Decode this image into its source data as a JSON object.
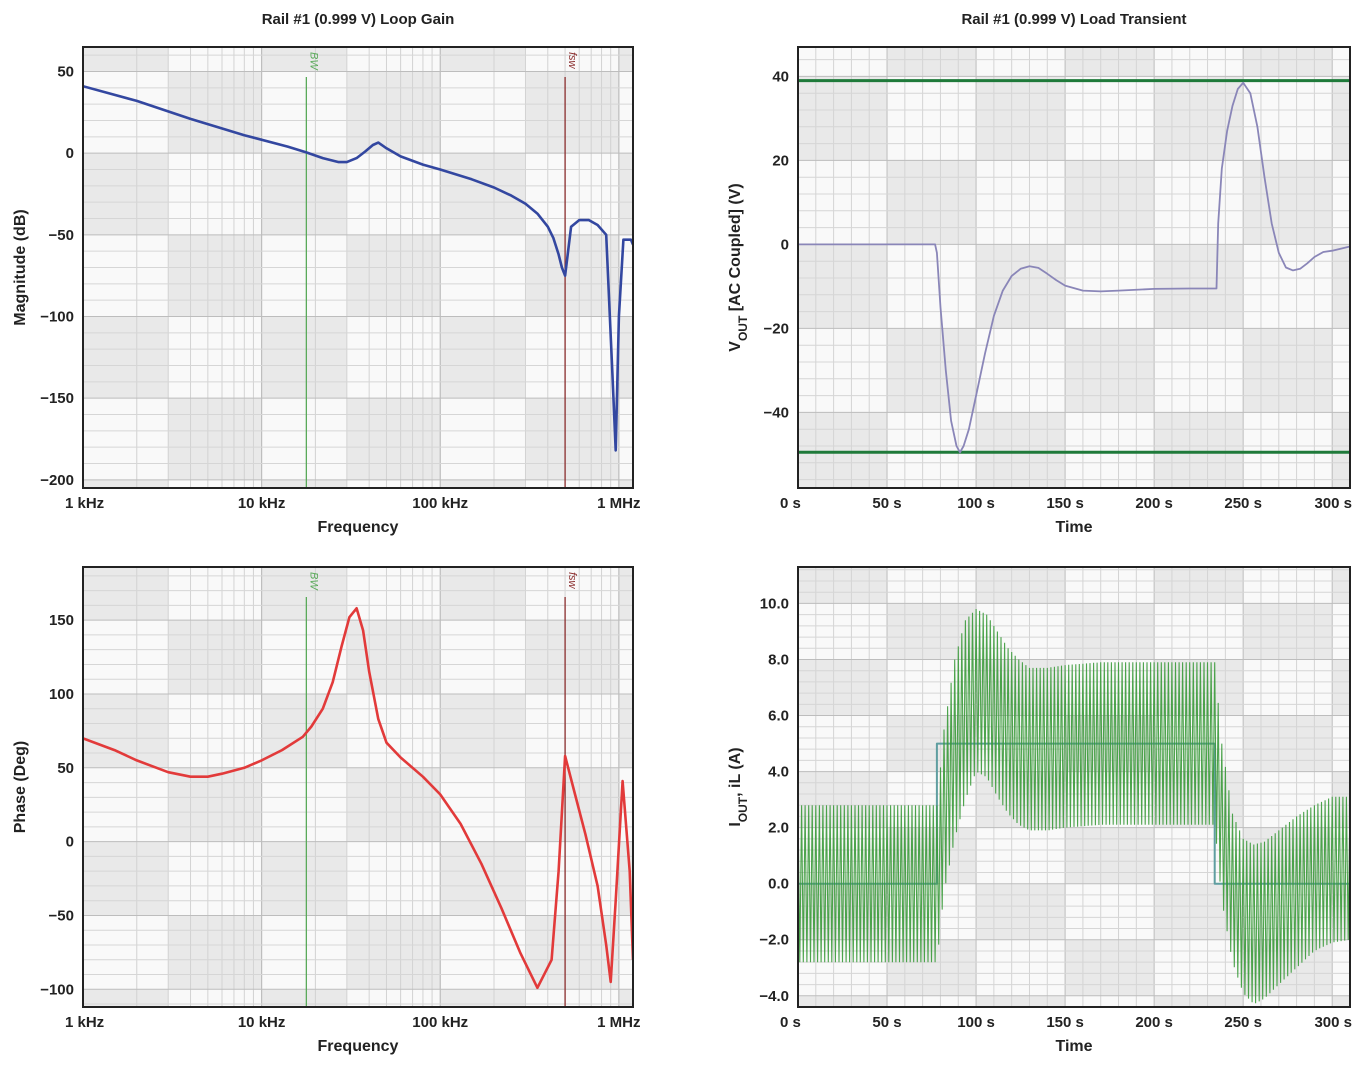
{
  "chart_data": [
    {
      "type": "line",
      "title": "Rail #1 (0.999 V) Loop Gain",
      "xlabel": "Frequency",
      "ylabel": "Magnitude (dB)",
      "xscale": "log",
      "xlim": [
        1000,
        1200000
      ],
      "ylim": [
        -205,
        65
      ],
      "xticks": [
        {
          "value": 1000,
          "label": "1 kHz"
        },
        {
          "value": 10000,
          "label": "10 kHz"
        },
        {
          "value": 100000,
          "label": "100 kHz"
        },
        {
          "value": 1000000,
          "label": "1 MHz"
        }
      ],
      "yticks": [
        {
          "value": 50,
          "label": "50"
        },
        {
          "value": 0,
          "label": "0"
        },
        {
          "value": -50,
          "label": "−50"
        },
        {
          "value": -100,
          "label": "−100"
        },
        {
          "value": -150,
          "label": "−150"
        },
        {
          "value": -200,
          "label": "−200"
        }
      ],
      "markers": [
        {
          "label": "BW",
          "x": 17800,
          "color": "#5aaa5a"
        },
        {
          "label": "fsw",
          "x": 500000,
          "color": "#8b2e2e"
        }
      ],
      "series": [
        {
          "name": "Magnitude",
          "color": "#3347a0",
          "x": [
            1000,
            2000,
            4000,
            8000,
            14000,
            17800,
            22000,
            27000,
            30000,
            34000,
            38000,
            42000,
            45000,
            50000,
            60000,
            80000,
            100000,
            150000,
            200000,
            250000,
            300000,
            350000,
            400000,
            430000,
            460000,
            480000,
            500000,
            540000,
            600000,
            680000,
            760000,
            850000,
            920000,
            960000,
            1000000,
            1060000,
            1130000,
            1170000,
            1200000
          ],
          "y": [
            41,
            32,
            21,
            11,
            4,
            0.5,
            -3,
            -5.5,
            -5.5,
            -3,
            1,
            5,
            6.5,
            3,
            -2,
            -7,
            -10,
            -16,
            -21,
            -26,
            -31,
            -37,
            -45,
            -52,
            -62,
            -70,
            -75,
            -45,
            -41,
            -41,
            -44,
            -50,
            -135,
            -182,
            -100,
            -53,
            -53,
            -53,
            -56
          ]
        }
      ]
    },
    {
      "type": "line",
      "title": "Rail #1 (0.999 V) Load Transient",
      "xlabel": "Time",
      "ylabel": "VOUT [AC Coupled] (V)",
      "ylabel_main": "V",
      "ylabel_sub": "OUT",
      "ylabel_rest": " [AC Coupled] (V)",
      "xlim": [
        0,
        310
      ],
      "ylim": [
        -58,
        47
      ],
      "xticks": [
        {
          "value": 0,
          "label": "0 s"
        },
        {
          "value": 50,
          "label": "50 s"
        },
        {
          "value": 100,
          "label": "100 s"
        },
        {
          "value": 150,
          "label": "150 s"
        },
        {
          "value": 200,
          "label": "200 s"
        },
        {
          "value": 250,
          "label": "250 s"
        },
        {
          "value": 300,
          "label": "300 s"
        }
      ],
      "yticks": [
        {
          "value": 40,
          "label": "40"
        },
        {
          "value": 20,
          "label": "20"
        },
        {
          "value": 0,
          "label": "0"
        },
        {
          "value": -20,
          "label": "−20"
        },
        {
          "value": -40,
          "label": "−40"
        }
      ],
      "limits": [
        {
          "value": 39,
          "color": "#1f7a3a"
        },
        {
          "value": -49.5,
          "color": "#1f7a3a"
        }
      ],
      "series": [
        {
          "name": "VOUT",
          "color": "#8a86b8",
          "x": [
            0,
            77,
            78,
            80,
            83,
            86,
            89,
            91,
            93,
            96,
            100,
            105,
            110,
            115,
            120,
            125,
            130,
            135,
            140,
            145,
            150,
            160,
            170,
            180,
            200,
            220,
            235,
            236,
            238,
            241,
            244,
            247,
            250,
            254,
            258,
            262,
            266,
            270,
            274,
            278,
            282,
            286,
            290,
            295,
            300,
            305,
            310
          ],
          "y": [
            0,
            0,
            -2,
            -15,
            -30,
            -42,
            -48,
            -49.5,
            -48,
            -44,
            -36,
            -26,
            -17,
            -11,
            -7.5,
            -5.8,
            -5.2,
            -5.6,
            -7,
            -8.5,
            -9.8,
            -11,
            -11.2,
            -11,
            -10.6,
            -10.5,
            -10.5,
            5,
            18,
            27,
            33,
            37,
            38.5,
            36,
            28,
            16,
            5,
            -2,
            -5.5,
            -6.2,
            -5.8,
            -4.5,
            -3,
            -1.8,
            -1.5,
            -1,
            -0.5
          ]
        }
      ]
    },
    {
      "type": "line",
      "title": "",
      "xlabel": "Frequency",
      "ylabel": "Phase (Deg)",
      "xscale": "log",
      "xlim": [
        1000,
        1200000
      ],
      "ylim": [
        -112,
        186
      ],
      "xticks": [
        {
          "value": 1000,
          "label": "1 kHz"
        },
        {
          "value": 10000,
          "label": "10 kHz"
        },
        {
          "value": 100000,
          "label": "100 kHz"
        },
        {
          "value": 1000000,
          "label": "1 MHz"
        }
      ],
      "yticks": [
        {
          "value": 150,
          "label": "150"
        },
        {
          "value": 100,
          "label": "100"
        },
        {
          "value": 50,
          "label": "50"
        },
        {
          "value": 0,
          "label": "0"
        },
        {
          "value": -50,
          "label": "−50"
        },
        {
          "value": -100,
          "label": "−100"
        }
      ],
      "markers": [
        {
          "label": "BW",
          "x": 17800,
          "color": "#5aaa5a"
        },
        {
          "label": "fsw",
          "x": 500000,
          "color": "#8b2e2e"
        }
      ],
      "series": [
        {
          "name": "Phase",
          "color": "#e23a3a",
          "x": [
            1000,
            1500,
            2000,
            3000,
            4000,
            5000,
            6000,
            8000,
            10000,
            13000,
            17000,
            19000,
            22000,
            25000,
            28000,
            31000,
            34000,
            37000,
            40000,
            45000,
            50000,
            60000,
            80000,
            100000,
            130000,
            170000,
            220000,
            280000,
            350000,
            420000,
            460000,
            500000,
            560000,
            650000,
            760000,
            850000,
            900000,
            960000,
            1050000,
            1150000,
            1200000
          ],
          "y": [
            70,
            62,
            55,
            47,
            44,
            44,
            46,
            50,
            55,
            62,
            71,
            78,
            90,
            108,
            132,
            152,
            158,
            143,
            115,
            83,
            67,
            57,
            44,
            32,
            12,
            -15,
            -45,
            -75,
            -99,
            -80,
            -20,
            58,
            35,
            5,
            -30,
            -70,
            -95,
            -40,
            41,
            -20,
            -80
          ]
        }
      ]
    },
    {
      "type": "line",
      "title": "",
      "xlabel": "Time",
      "ylabel": "IOUT, iL (A)",
      "ylabel_main": "I",
      "ylabel_sub": "OUT",
      "ylabel_rest": ", iL (A)",
      "xlim": [
        0,
        310
      ],
      "ylim": [
        -4.4,
        11.3
      ],
      "xticks": [
        {
          "value": 0,
          "label": "0 s"
        },
        {
          "value": 50,
          "label": "50 s"
        },
        {
          "value": 100,
          "label": "100 s"
        },
        {
          "value": 150,
          "label": "150 s"
        },
        {
          "value": 200,
          "label": "200 s"
        },
        {
          "value": 250,
          "label": "250 s"
        },
        {
          "value": 300,
          "label": "300 s"
        }
      ],
      "yticks": [
        {
          "value": 10,
          "label": "10.0"
        },
        {
          "value": 8,
          "label": "8.0"
        },
        {
          "value": 6,
          "label": "6.0"
        },
        {
          "value": 4,
          "label": "4.0"
        },
        {
          "value": 2,
          "label": "2.0"
        },
        {
          "value": 0,
          "label": "0.0"
        },
        {
          "value": -2,
          "label": "−2.0"
        },
        {
          "value": -4,
          "label": "−4.0"
        }
      ],
      "series": [
        {
          "name": "IOUT",
          "color": "#5f9ea0",
          "x": [
            0,
            78,
            78,
            234,
            234,
            310
          ],
          "y": [
            0,
            0,
            5,
            5,
            0,
            0
          ]
        },
        {
          "name": "iL",
          "color": "#3a9a3a",
          "ripple_period": 2,
          "x": [
            0,
            78,
            82,
            88,
            94,
            100,
            106,
            112,
            118,
            124,
            130,
            140,
            150,
            170,
            190,
            210,
            234,
            238,
            244,
            250,
            256,
            262,
            270,
            280,
            290,
            300,
            310
          ],
          "upper": [
            2.8,
            2.8,
            5.5,
            8.0,
            9.4,
            9.8,
            9.6,
            9.0,
            8.4,
            8.0,
            7.7,
            7.7,
            7.8,
            7.9,
            7.9,
            7.9,
            7.9,
            5.0,
            2.5,
            1.6,
            1.4,
            1.5,
            1.9,
            2.4,
            2.8,
            3.1,
            3.1
          ],
          "lower": [
            -2.8,
            -2.8,
            -0.3,
            1.6,
            3.0,
            4.0,
            3.8,
            3.1,
            2.5,
            2.1,
            1.9,
            1.9,
            2.0,
            2.1,
            2.1,
            2.1,
            2.1,
            -0.6,
            -2.8,
            -3.9,
            -4.3,
            -4.1,
            -3.6,
            -3.0,
            -2.4,
            -2.1,
            -2.0
          ]
        }
      ]
    }
  ]
}
